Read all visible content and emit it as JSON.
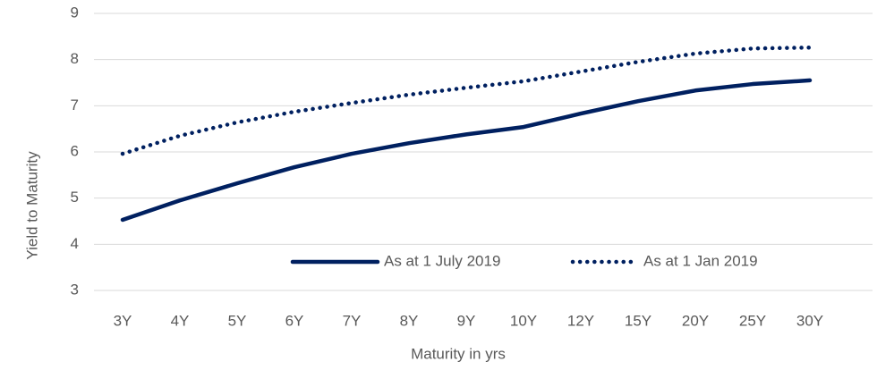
{
  "chart_data": {
    "type": "line",
    "x_label": "Maturity  in yrs",
    "y_label": "Yield to Maturity",
    "categories": [
      "3Y",
      "4Y",
      "5Y",
      "6Y",
      "7Y",
      "8Y",
      "9Y",
      "10Y",
      "12Y",
      "15Y",
      "20Y",
      "25Y",
      "30Y"
    ],
    "series": [
      {
        "name": "As at 1 July 2019",
        "color": "#002060",
        "dash": "solid",
        "values": [
          4.53,
          4.95,
          5.32,
          5.67,
          5.96,
          6.19,
          6.38,
          6.54,
          6.83,
          7.1,
          7.33,
          7.47,
          7.55
        ]
      },
      {
        "name": "As at 1 Jan 2019",
        "color": "#002060",
        "dash": "dotted",
        "values": [
          5.96,
          6.35,
          6.64,
          6.87,
          7.06,
          7.24,
          7.39,
          7.53,
          7.74,
          7.95,
          8.13,
          8.24,
          8.26
        ]
      }
    ],
    "ylim": [
      3,
      9
    ],
    "yticks": [
      3,
      4,
      5,
      6,
      7,
      8,
      9
    ],
    "grid": true,
    "legend": "bottom"
  }
}
